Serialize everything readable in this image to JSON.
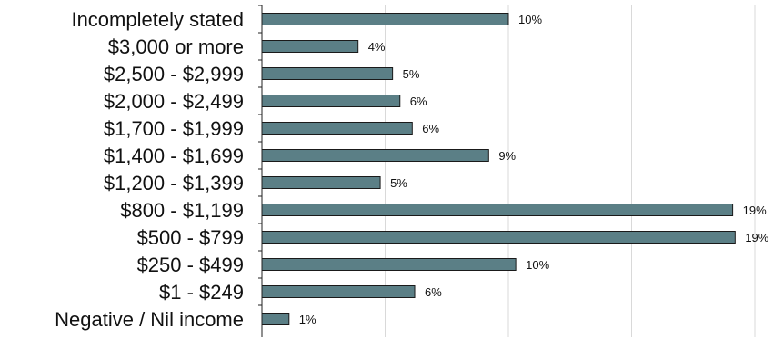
{
  "chart_data": {
    "type": "bar",
    "orientation": "horizontal",
    "categories": [
      "Incompletely stated",
      "$3,000 or more",
      "$2,500 - $2,999",
      "$2,000 - $2,499",
      "$1,700 - $1,999",
      "$1,400 - $1,699",
      "$1,200 - $1,399",
      "$800 - $1,199",
      "$500 - $799",
      "$250 - $499",
      "$1 - $249",
      "Negative / Nil income"
    ],
    "values": [
      10.0,
      3.9,
      5.3,
      5.6,
      6.1,
      9.2,
      4.8,
      19.1,
      19.2,
      10.3,
      6.2,
      1.1
    ],
    "value_labels": [
      "10%",
      "4%",
      "5%",
      "6%",
      "6%",
      "9%",
      "5%",
      "19%",
      "19%",
      "10%",
      "6%",
      "1%"
    ],
    "xlim": [
      0,
      20
    ],
    "grid": true,
    "colors": {
      "bar": "#5b7f86",
      "bar_edge": "#1a1a1a",
      "grid": "#d9d9d9",
      "axis": "#222222"
    }
  }
}
